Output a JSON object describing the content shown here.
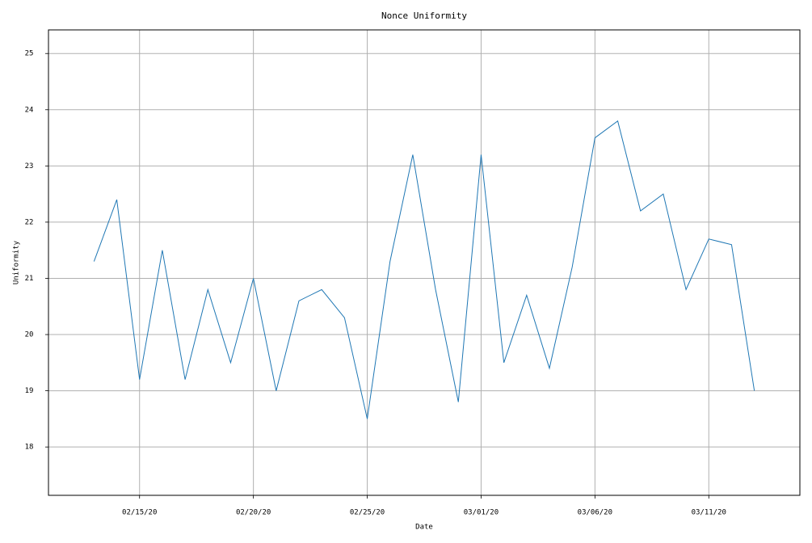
{
  "chart_data": {
    "type": "line",
    "title": "Nonce Uniformity",
    "xlabel": "Date",
    "ylabel": "Uniformity",
    "x": [
      "2020-02-13",
      "2020-02-14",
      "2020-02-15",
      "2020-02-16",
      "2020-02-17",
      "2020-02-18",
      "2020-02-19",
      "2020-02-20",
      "2020-02-21",
      "2020-02-22",
      "2020-02-23",
      "2020-02-24",
      "2020-02-25",
      "2020-02-26",
      "2020-02-27",
      "2020-02-28",
      "2020-02-29",
      "2020-03-01",
      "2020-03-02",
      "2020-03-03",
      "2020-03-04",
      "2020-03-05",
      "2020-03-06",
      "2020-03-07",
      "2020-03-08",
      "2020-03-09",
      "2020-03-10",
      "2020-03-11",
      "2020-03-12",
      "2020-03-13"
    ],
    "values": [
      21.3,
      22.4,
      19.2,
      21.5,
      19.2,
      20.8,
      19.5,
      21.0,
      19.0,
      20.6,
      20.8,
      20.3,
      18.5,
      21.3,
      23.2,
      20.8,
      18.8,
      23.2,
      19.5,
      20.7,
      19.4,
      21.2,
      23.5,
      23.8,
      22.2,
      22.5,
      20.8,
      21.7,
      21.6,
      19.0
    ],
    "color": "#1f77b4",
    "xlim": [
      "2020-02-11",
      "2020-03-15"
    ],
    "xticks": [
      {
        "value": "2020-02-15",
        "label": "02/15/20"
      },
      {
        "value": "2020-02-20",
        "label": "02/20/20"
      },
      {
        "value": "2020-02-25",
        "label": "02/25/20"
      },
      {
        "value": "2020-03-01",
        "label": "03/01/20"
      },
      {
        "value": "2020-03-06",
        "label": "03/06/20"
      },
      {
        "value": "2020-03-11",
        "label": "03/11/20"
      }
    ],
    "ylim": [
      17.14,
      25.42
    ],
    "yticks": [
      18,
      19,
      20,
      21,
      22,
      23,
      24,
      25
    ],
    "grid": true
  }
}
